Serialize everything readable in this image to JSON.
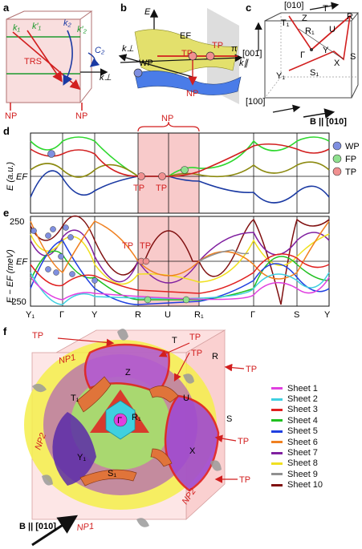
{
  "panels": {
    "a": "a",
    "b": "b",
    "c": "c",
    "d": "d",
    "e": "e",
    "f": "f"
  },
  "a": {
    "k1": "k₁",
    "k1p": "k′₁",
    "k2": "k₂",
    "k2p": "k′₂",
    "trs": "TRS",
    "c2": "C₂",
    "kperp": "k⊥",
    "np_left": "NP",
    "np_right": "NP"
  },
  "b": {
    "E": "E",
    "EF": "EF",
    "wp": "WP",
    "tp_left": "TP",
    "tp_right": "TP",
    "np": "NP",
    "pi": "π",
    "kpar": "k∥",
    "kperp": "k⊥"
  },
  "c": {
    "axis_010": "[010]",
    "axis_001": "[001]",
    "axis_100": "[100]",
    "field": "B || [010]",
    "points": {
      "Z": "Z",
      "T": "T",
      "T1": "T₁",
      "R": "R",
      "R1": "R₁",
      "U": "U",
      "Y": "Y",
      "Gamma": "Γ",
      "X": "X",
      "S": "S",
      "Y1": "Y₁",
      "S1": "S₁"
    }
  },
  "d": {
    "np": "NP",
    "ylabel": "E (a.u.)",
    "EF": "EF",
    "tp1": "TP",
    "tp2": "TP",
    "legend": [
      {
        "label": "WP",
        "color": "#7f8fe0"
      },
      {
        "label": "FP",
        "color": "#8fe08f"
      },
      {
        "label": "TP",
        "color": "#f09090"
      }
    ]
  },
  "e": {
    "ylabel": "E − EF (meV)",
    "tick_top": "250",
    "tick_ef": "EF",
    "tick_bottom": "−250",
    "tp1": "TP",
    "tp2": "TP",
    "xticks": [
      "Y₁",
      "Γ",
      "Y",
      "R",
      "U",
      "R₁",
      "Γ",
      "S",
      "Y"
    ]
  },
  "f": {
    "labels": {
      "TP_topleft": "TP",
      "T": "T",
      "TP_top1": "TP",
      "TP_top2": "TP",
      "R": "R",
      "TP_right": "TP",
      "NP1_left": "NP1",
      "Z": "Z",
      "T1": "T₁",
      "U": "U",
      "S": "S",
      "Gamma": "Γ",
      "R1": "R₁",
      "NP2_left": "NP2",
      "Y1": "Y₁",
      "X": "X",
      "TP_mid": "TP",
      "S1": "S₁",
      "TP_bottom": "TP",
      "NP1_bottom": "NP1",
      "NP2_bottom": "NP2",
      "field": "B || [010]"
    },
    "sheets": [
      {
        "label": "Sheet 1",
        "color": "#e040e0"
      },
      {
        "label": "Sheet 2",
        "color": "#3fd0e0"
      },
      {
        "label": "Sheet 3",
        "color": "#e02020"
      },
      {
        "label": "Sheet 4",
        "color": "#20c020"
      },
      {
        "label": "Sheet 5",
        "color": "#2040e0"
      },
      {
        "label": "Sheet 6",
        "color": "#f08020"
      },
      {
        "label": "Sheet 7",
        "color": "#8020a0"
      },
      {
        "label": "Sheet 8",
        "color": "#f0e020"
      },
      {
        "label": "Sheet 9",
        "color": "#909090"
      },
      {
        "label": "Sheet 10",
        "color": "#801010"
      }
    ]
  }
}
